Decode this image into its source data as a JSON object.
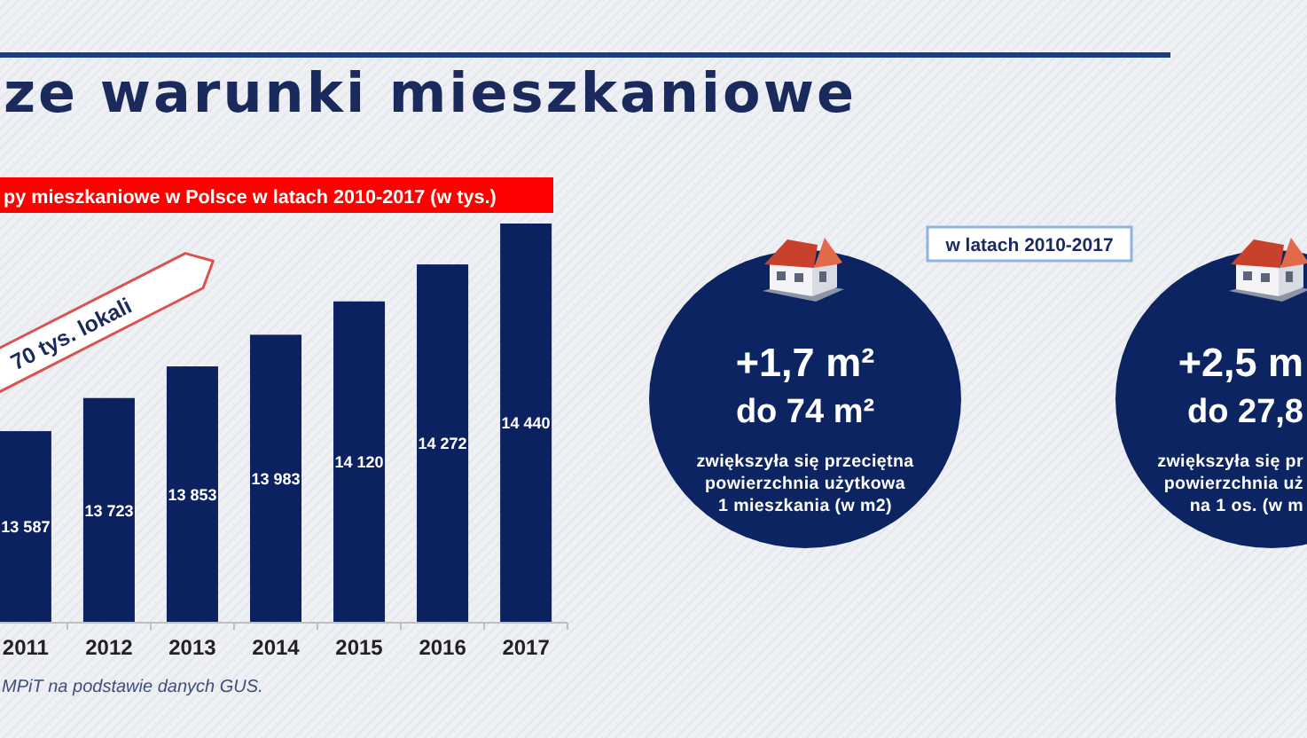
{
  "chart_data": [
    {
      "type": "bar",
      "title": "ze warunki mieszkaniowe",
      "subtitle": "py mieszkaniowe w Polsce w latach 2010-2017 (w tys.)",
      "categories": [
        "2011",
        "2012",
        "2013",
        "2014",
        "2015",
        "2016",
        "2017"
      ],
      "values": [
        13587,
        13723,
        13853,
        13983,
        14120,
        14272,
        14440
      ],
      "value_labels": [
        "13 587",
        "13 723",
        "13 853",
        "13 983",
        "14 120",
        "14 272",
        "14 440"
      ],
      "color": "#0c2160",
      "ylim": [
        12800,
        14440
      ],
      "tick_labels": "x",
      "annotations": [
        "70 tys. lokali",
        "MPiT na podstawie danych GUS."
      ]
    },
    {
      "type": "other",
      "title": "w latach 2010-2017",
      "annotations": [
        "+1,7 m²",
        "do 74 m²",
        "zwiększyła się przeciętna\npowierzchnia użytkowa\n1 mieszkania (w m2)",
        "+2,5 m",
        "do 27,8",
        "zwiększyła się pr\npowierzchnia uż\nna 1 os. (w m"
      ]
    }
  ]
}
